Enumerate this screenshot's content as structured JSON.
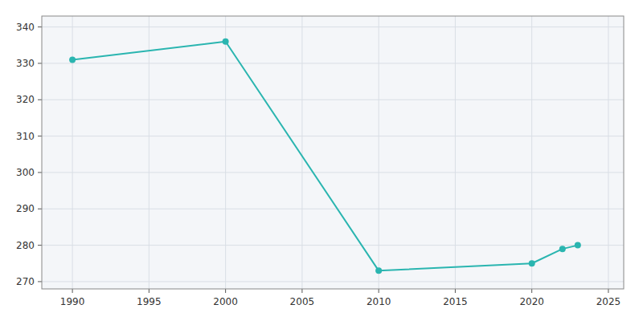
{
  "chart_data": {
    "type": "line",
    "x": [
      1990,
      2000,
      2010,
      2020,
      2022,
      2023
    ],
    "values": [
      331,
      336,
      273,
      275,
      279,
      280
    ],
    "color": "#2ab5b0",
    "marker": "circle",
    "xlim": [
      1988,
      2026
    ],
    "ylim": [
      268,
      343
    ],
    "xticks": [
      1990,
      1995,
      2000,
      2005,
      2010,
      2015,
      2020,
      2025
    ],
    "yticks": [
      270,
      280,
      290,
      300,
      310,
      320,
      330,
      340
    ],
    "grid": true
  }
}
